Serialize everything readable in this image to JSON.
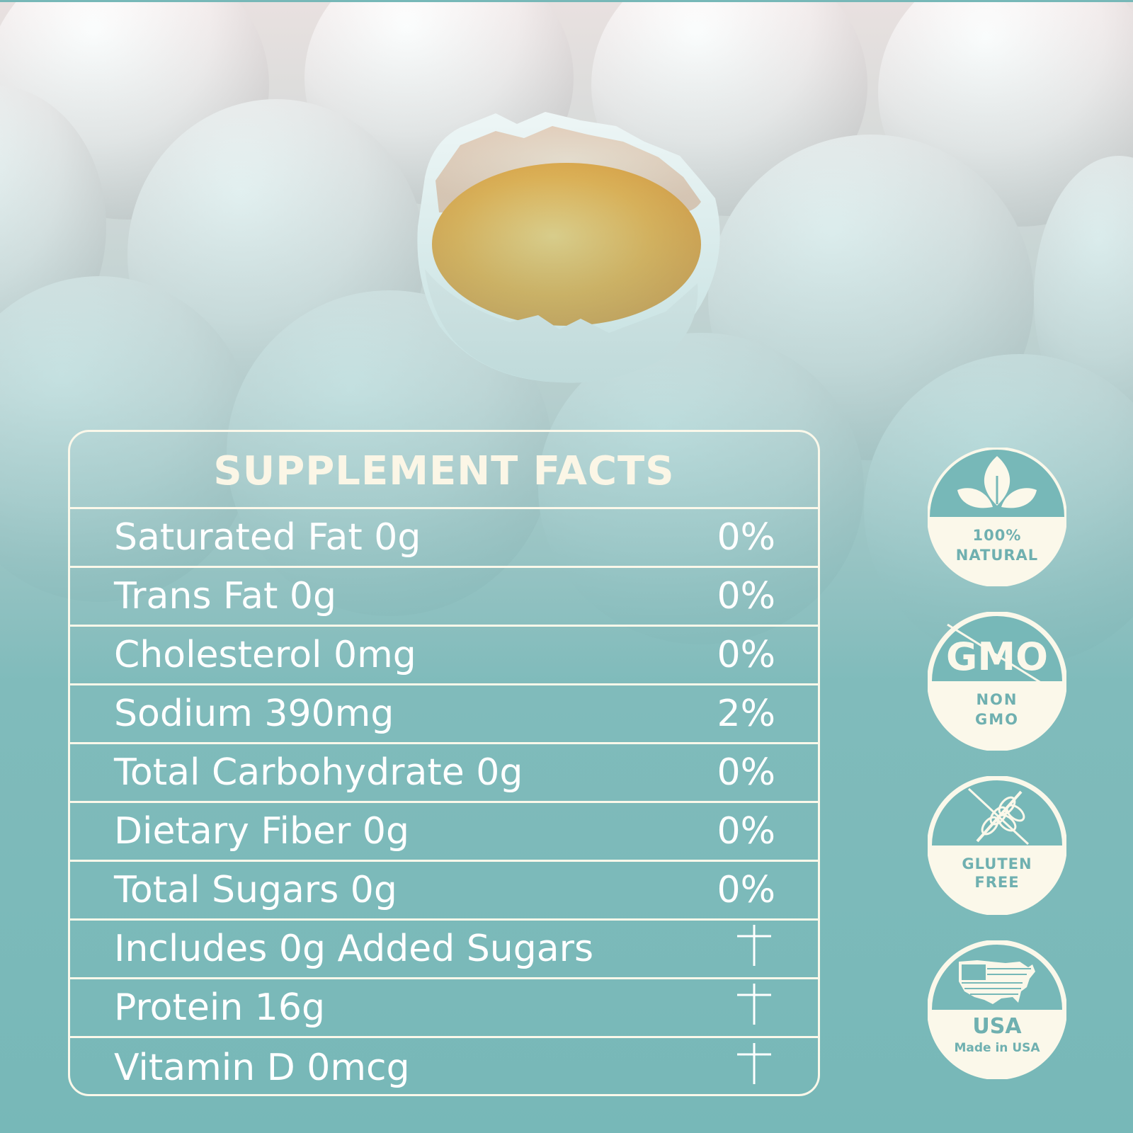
{
  "supplement_facts": {
    "title": "SUPPLEMENT FACTS",
    "rows": [
      {
        "label": "Saturated Fat 0g",
        "value": "0%"
      },
      {
        "label": "Trans Fat 0g",
        "value": "0%"
      },
      {
        "label": "Cholesterol 0mg",
        "value": "0%"
      },
      {
        "label": "Sodium 390mg",
        "value": "2%"
      },
      {
        "label": "Total Carbohydrate 0g",
        "value": "0%"
      },
      {
        "label": "Dietary Fiber 0g",
        "value": "0%"
      },
      {
        "label": "Total Sugars 0g",
        "value": "0%"
      },
      {
        "label": "Includes 0g Added Sugars",
        "value": "†"
      },
      {
        "label": "Protein 16g",
        "value": "†"
      },
      {
        "label": "Vitamin D 0mcg",
        "value": "†"
      }
    ]
  },
  "badges": [
    {
      "icon": "leaf-icon",
      "line1": "100%",
      "line2": "NATURAL"
    },
    {
      "icon": "gmo-crossed-icon",
      "logo_text": "GMO",
      "line1": "NON",
      "line2": "GMO"
    },
    {
      "icon": "wheat-crossed-icon",
      "line1": "GLUTEN",
      "line2": "FREE"
    },
    {
      "icon": "usa-map-icon",
      "line1": "USA",
      "line2": "Made in USA"
    }
  ],
  "colors": {
    "teal": "#77b8b8",
    "badge_text": "#6fb0b0",
    "cream": "#fbf8ea",
    "yolk": "#f2a93b"
  }
}
